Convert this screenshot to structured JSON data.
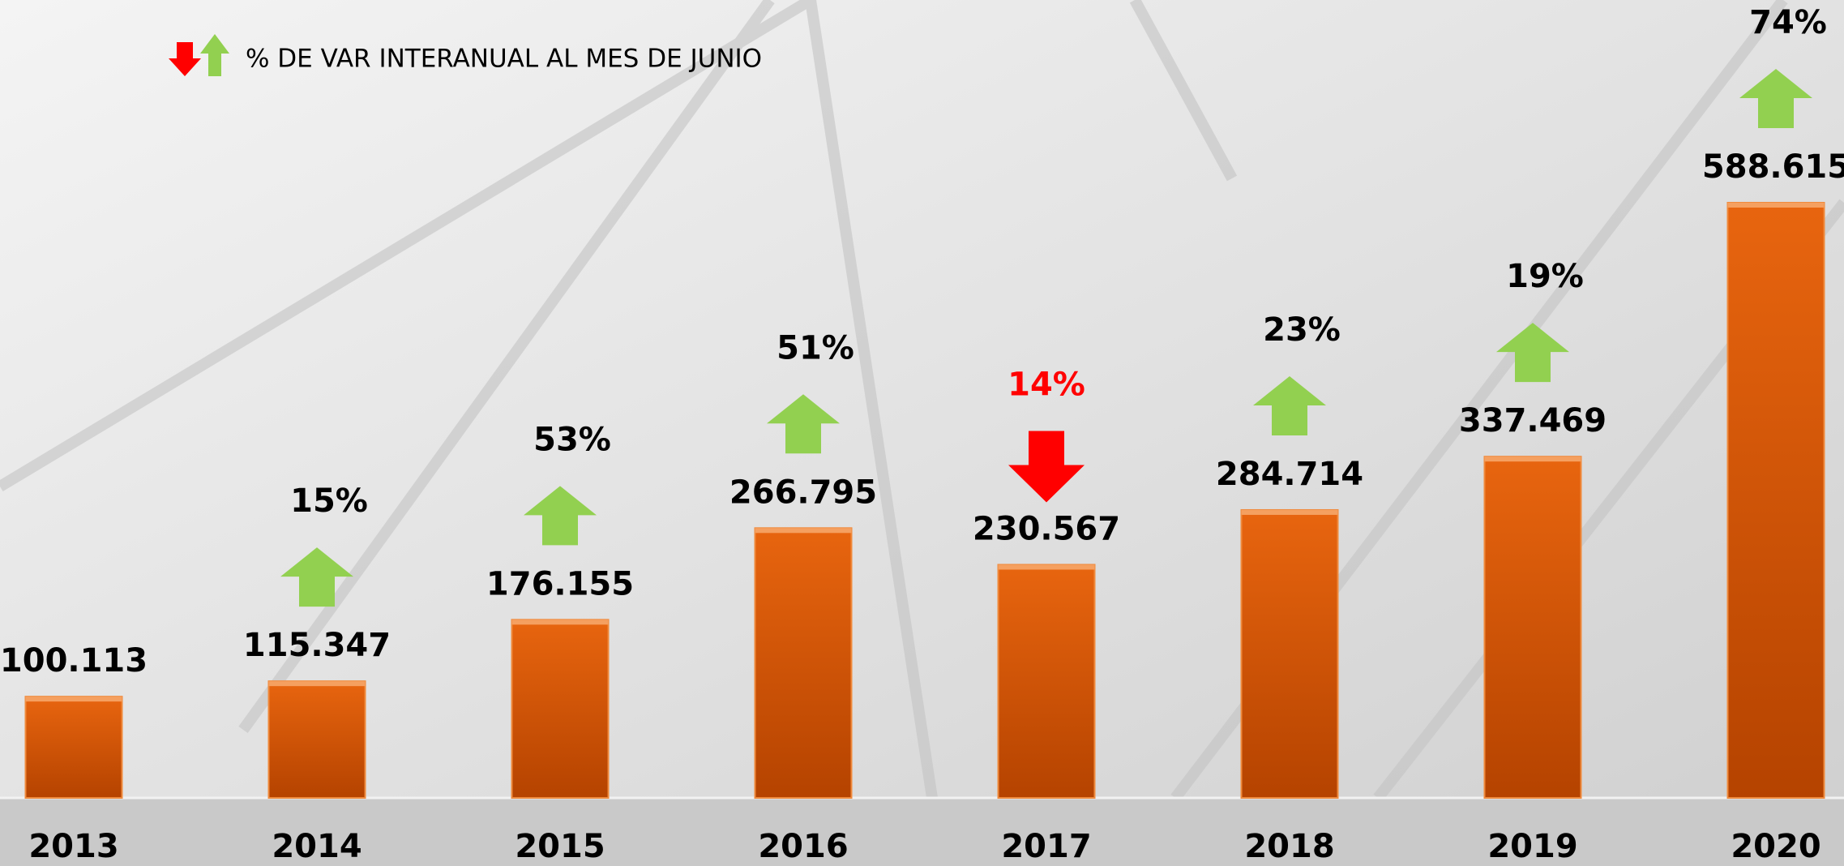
{
  "chart_data": {
    "type": "bar",
    "legend": "% DE VAR INTERANUAL AL MES DE JUNIO",
    "categories": [
      "2013",
      "2014",
      "2015",
      "2016",
      "2017",
      "2018",
      "2019",
      "2020"
    ],
    "values": [
      100113,
      115347,
      176155,
      266795,
      230567,
      284714,
      337469,
      588615
    ],
    "value_labels": [
      "100.113",
      "115.347",
      "176.155",
      "266.795",
      "230.567",
      "284.714",
      "337.469",
      "588.615"
    ],
    "color": "#d9590b",
    "changes": [
      null,
      15,
      53,
      51,
      -14,
      23,
      19,
      74
    ],
    "change_labels": [
      null,
      "15%",
      "53%",
      "51%",
      "14%",
      "23%",
      "19%",
      "74%"
    ],
    "up_color": "#92d050",
    "down_color": "#ff0000"
  }
}
